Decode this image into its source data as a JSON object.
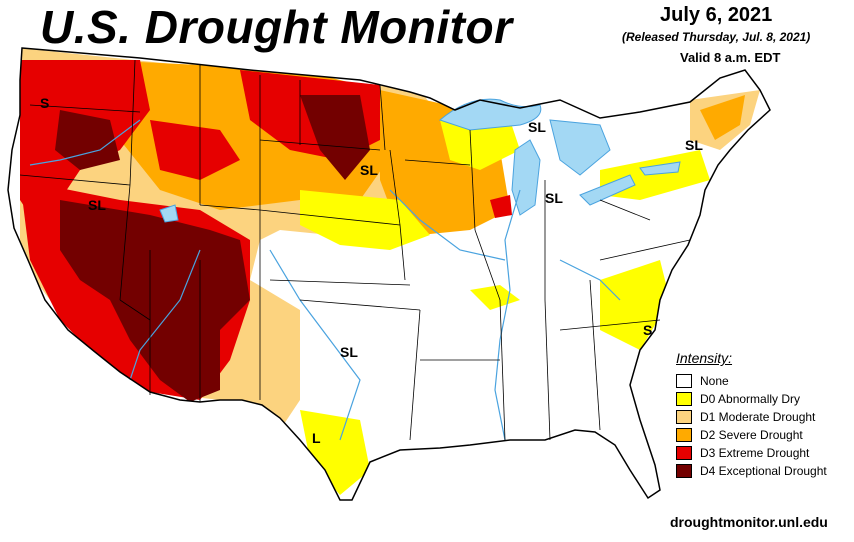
{
  "header": {
    "title": "U.S. Drought Monitor",
    "date": "July 6, 2021",
    "released": "(Released Thursday, Jul. 8, 2021)",
    "valid": "Valid 8 a.m. EDT"
  },
  "legend": {
    "title": "Intensity:",
    "items": [
      {
        "label": "None",
        "color": "#ffffff"
      },
      {
        "label": "D0 Abnormally Dry",
        "color": "#ffff00"
      },
      {
        "label": "D1 Moderate Drought",
        "color": "#fcd37f"
      },
      {
        "label": "D2 Severe Drought",
        "color": "#ffaa00"
      },
      {
        "label": "D3 Extreme Drought",
        "color": "#e60000"
      },
      {
        "label": "D4 Exceptional Drought",
        "color": "#730000"
      }
    ]
  },
  "map_labels": [
    {
      "id": "s-wa",
      "text": "S"
    },
    {
      "id": "sl-ca",
      "text": "SL"
    },
    {
      "id": "sl-sd",
      "text": "SL"
    },
    {
      "id": "sl-mi-north",
      "text": "SL"
    },
    {
      "id": "sl-mi",
      "text": "SL"
    },
    {
      "id": "sl-ne",
      "text": "SL"
    },
    {
      "id": "sl-tx",
      "text": "SL"
    },
    {
      "id": "s-nc",
      "text": "S"
    },
    {
      "id": "l-tx",
      "text": "L"
    }
  ],
  "colors": {
    "water": "#a3d8f4",
    "borders": "#000000",
    "rivers": "#4aa3df"
  },
  "footer": "droughtmonitor.unl.edu"
}
